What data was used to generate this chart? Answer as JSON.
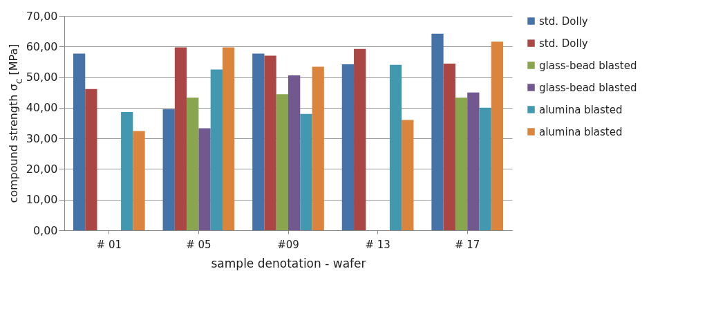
{
  "chart_data": {
    "type": "bar",
    "xlabel": "sample denotation - wafer",
    "ylabel": "compound strength σ$_{C}$ [MPa]",
    "categories": [
      "# 01",
      "# 05",
      "#09",
      "# 13",
      "# 17"
    ],
    "series": [
      {
        "name": "std. Dolly",
        "color": "#4572a7",
        "values": [
          57.7,
          39.5,
          57.7,
          54.2,
          64.2
        ]
      },
      {
        "name": "std. Dolly",
        "color": "#aa4643",
        "values": [
          46.1,
          59.7,
          57.0,
          59.2,
          54.4
        ]
      },
      {
        "name": "glass-bead blasted",
        "color": "#89a54e",
        "values": [
          null,
          43.3,
          44.4,
          null,
          43.3
        ]
      },
      {
        "name": "glass-bead blasted",
        "color": "#71588f",
        "values": [
          null,
          33.3,
          50.6,
          null,
          45.0
        ]
      },
      {
        "name": "alumina blasted",
        "color": "#4198af",
        "values": [
          38.6,
          52.5,
          38.0,
          54.0,
          40.0
        ]
      },
      {
        "name": "alumina blasted",
        "color": "#db843d",
        "values": [
          32.4,
          59.7,
          53.4,
          36.0,
          61.6
        ]
      }
    ],
    "ylim": [
      0,
      70
    ],
    "yticks": [
      {
        "value": 0,
        "label": "0,00"
      },
      {
        "value": 10,
        "label": "10,00"
      },
      {
        "value": 20,
        "label": "20,00"
      },
      {
        "value": 30,
        "label": "30,00"
      },
      {
        "value": 40,
        "label": "40,00"
      },
      {
        "value": 50,
        "label": "50,00"
      },
      {
        "value": 60,
        "label": "60,00"
      },
      {
        "value": 70,
        "label": "70,00"
      }
    ],
    "grid": "y",
    "legend": "right"
  }
}
